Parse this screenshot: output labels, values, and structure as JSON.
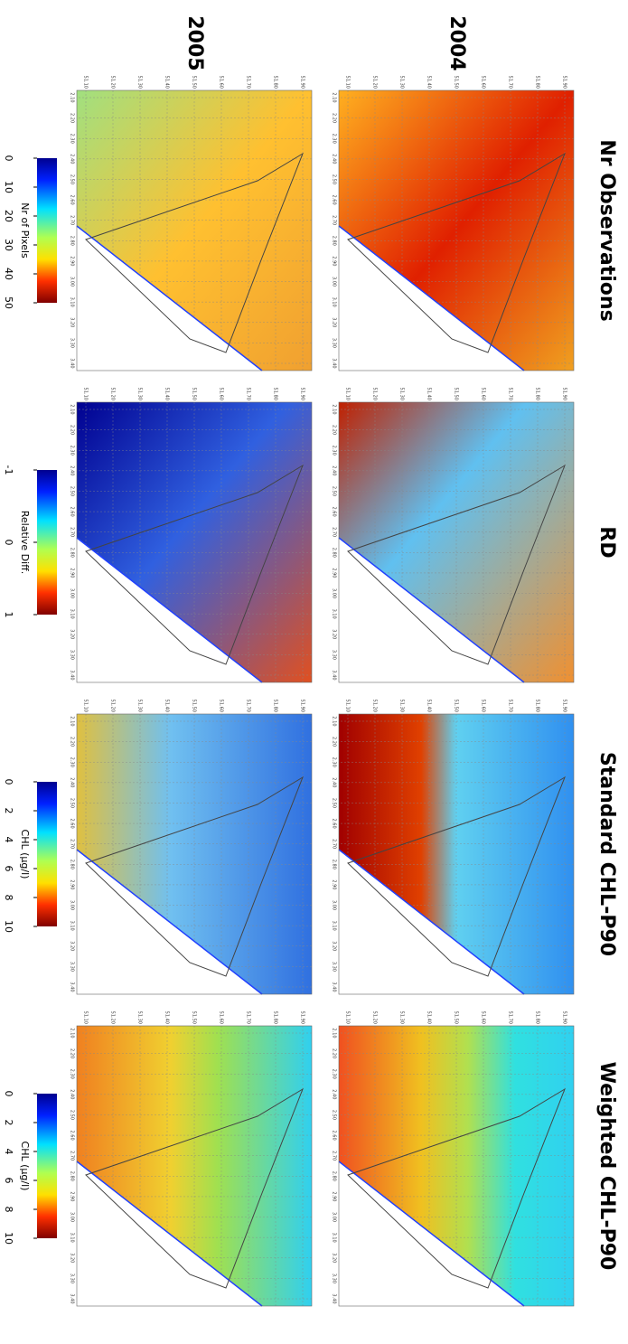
{
  "columns": [
    "Nr Observations",
    "RD",
    "Standard CHL-P90",
    "Weighted CHL-P90"
  ],
  "rows": [
    "2004",
    "2005"
  ],
  "lat_ticks": [
    "51.10",
    "51.20",
    "51.30",
    "51.40",
    "51.50",
    "51.60",
    "51.70",
    "51.80",
    "51.90"
  ],
  "lon_ticks": [
    "2.10",
    "2.20",
    "2.30",
    "2.40",
    "2.50",
    "2.60",
    "2.70",
    "2.80",
    "2.90",
    "3.00",
    "3.10",
    "3.20",
    "3.30",
    "3.40"
  ],
  "colorbars": [
    {
      "label": "Nr of Pixels",
      "lim": [
        0,
        50
      ],
      "ticks": [
        0,
        10,
        20,
        30,
        40,
        50
      ]
    },
    {
      "label": "Relative Diff.",
      "lim": [
        -1,
        1
      ],
      "ticks": [
        -1,
        0,
        1
      ]
    },
    {
      "label": "CHL (μg/l)",
      "lim": [
        0,
        10
      ],
      "ticks": [
        0,
        2,
        4,
        6,
        8,
        10
      ]
    },
    {
      "label": "CHL (μg/l)",
      "lim": [
        0,
        10
      ],
      "ticks": [
        0,
        2,
        4,
        6,
        8,
        10
      ]
    }
  ]
}
